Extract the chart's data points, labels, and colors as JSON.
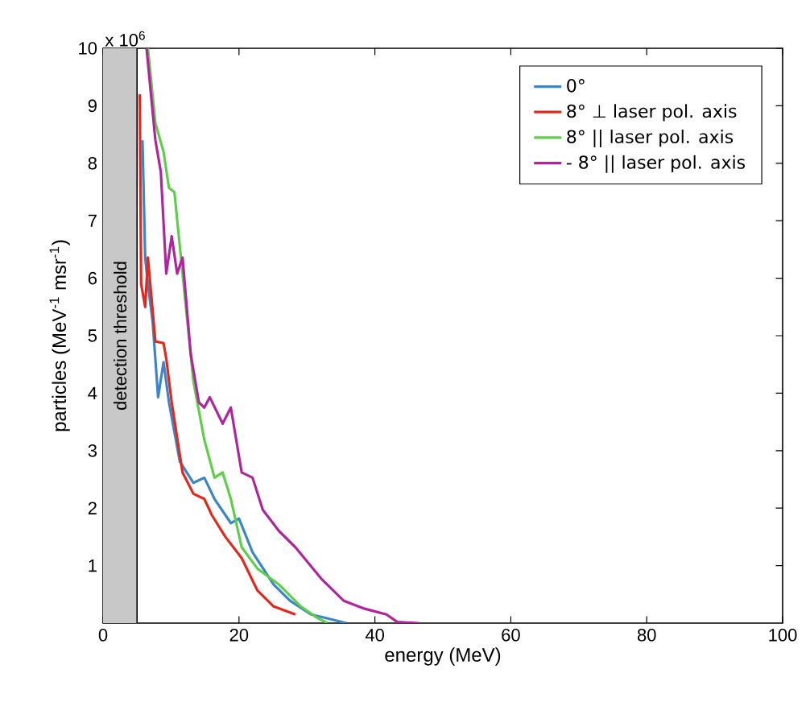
{
  "chart_data": {
    "type": "line",
    "xlabel": "energy (MeV)",
    "ylabel": "particles (MeV$^{-1}$ msr$^{-1}$)",
    "xlim": [
      0,
      100
    ],
    "xticks": [
      0,
      20,
      40,
      60,
      80,
      100
    ],
    "ylim": [
      0,
      10
    ],
    "yticks": [
      1,
      2,
      3,
      4,
      5,
      6,
      7,
      8,
      9,
      10
    ],
    "legend": "top right",
    "annotations": [
      "x 10$^{6}$"
    ],
    "ref_lines": [
      {
        "axis": "x",
        "value": 5,
        "color": "#000000"
      }
    ],
    "bands": [
      {
        "axis": "x",
        "from": 0,
        "to": 5,
        "label": "detection threshold",
        "color": "#c8c8c8"
      }
    ],
    "series": [
      {
        "name": "0°",
        "color": "#3a86c8",
        "x": [
          5.8,
          6.2,
          6.6,
          7.3,
          8.1,
          8.9,
          9.7,
          11.3,
          13.3,
          14.9,
          16.4,
          18.8,
          20,
          22,
          25.1,
          27.5,
          30.6,
          33.8,
          35.8
        ],
        "values": [
          8.4,
          6.36,
          5.9,
          5.24,
          3.93,
          4.54,
          3.84,
          2.81,
          2.44,
          2.53,
          2.16,
          1.74,
          1.82,
          1.23,
          0.67,
          0.39,
          0.15,
          0.06,
          0
        ]
      },
      {
        "name": "8° ⊥ laser pol. axis",
        "color": "#e3281e",
        "x": [
          5.4,
          5.6,
          6.2,
          6.6,
          7.7,
          8.9,
          9.3,
          10.1,
          11.7,
          13.3,
          14.9,
          16,
          18,
          20.4,
          22.7,
          25.1,
          28.3
        ],
        "values": [
          9.2,
          5.9,
          5.5,
          6.36,
          4.9,
          4.87,
          4.6,
          3.84,
          2.62,
          2.25,
          2.16,
          1.88,
          1.5,
          1.13,
          0.57,
          0.29,
          0.15
        ]
      },
      {
        "name": "8° || laser pol. axis",
        "color": "#5fce48",
        "x": [
          6.6,
          7.7,
          8.9,
          9.7,
          10.5,
          11.3,
          12.1,
          13.3,
          14.9,
          16.4,
          17.6,
          18.8,
          20.4,
          22.7,
          25.9,
          29.1,
          31.4,
          33
        ],
        "values": [
          10,
          8.7,
          8.2,
          7.57,
          7.5,
          6.55,
          5.6,
          4.2,
          3.19,
          2.53,
          2.62,
          2.16,
          1.32,
          0.95,
          0.67,
          0.29,
          0.1,
          0
        ]
      },
      {
        "name": "- 8° || laser pol. axis",
        "color": "#b0259f",
        "x": [
          6.4,
          7.7,
          8.5,
          9.3,
          10.1,
          10.9,
          11.7,
          12.9,
          14.1,
          14.9,
          15.7,
          17.6,
          18.8,
          20.4,
          22,
          23.5,
          25.9,
          28.3,
          32.2,
          35.4,
          38.5,
          41.7,
          43.3,
          46.4
        ],
        "values": [
          10,
          8.4,
          7.85,
          6.08,
          6.73,
          6.08,
          6.36,
          4.68,
          3.84,
          3.75,
          3.93,
          3.47,
          3.75,
          2.62,
          2.53,
          1.97,
          1.6,
          1.32,
          0.76,
          0.39,
          0.25,
          0.15,
          0.02,
          0
        ]
      }
    ]
  }
}
